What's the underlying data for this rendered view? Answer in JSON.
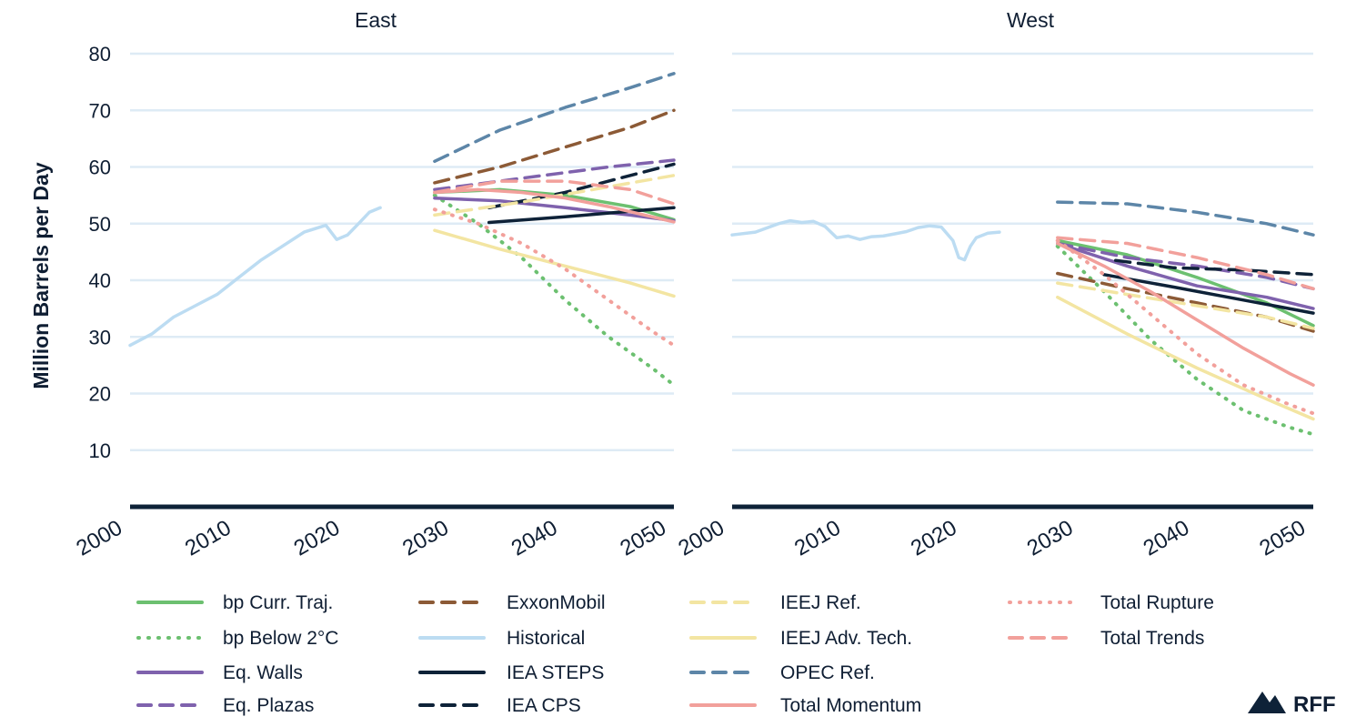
{
  "chart_data": {
    "type": "line",
    "ylabel": "Million Barrels per Day",
    "ylim": [
      0,
      80
    ],
    "yticks": [
      10,
      20,
      30,
      40,
      50,
      60,
      70,
      80
    ],
    "xlim": [
      2000,
      2050
    ],
    "xticks": [
      2000,
      2010,
      2020,
      2030,
      2040,
      2050
    ],
    "grid": true,
    "legend_position": "bottom",
    "brand": "RFF",
    "series_styles": [
      {
        "name": "bp Curr. Traj.",
        "color": "#6cc070",
        "dash": "solid"
      },
      {
        "name": "bp Below 2°C",
        "color": "#6cc070",
        "dash": "dot"
      },
      {
        "name": "Eq. Walls",
        "color": "#7f62ad",
        "dash": "solid"
      },
      {
        "name": "Eq. Plazas",
        "color": "#7f62ad",
        "dash": "dash"
      },
      {
        "name": "ExxonMobil",
        "color": "#8c5a36",
        "dash": "dash"
      },
      {
        "name": "Historical",
        "color": "#bcdcf2",
        "dash": "solid"
      },
      {
        "name": "IEA STEPS",
        "color": "#0e2238",
        "dash": "solid"
      },
      {
        "name": "IEA CPS",
        "color": "#0e2238",
        "dash": "dash"
      },
      {
        "name": "IEEJ Ref.",
        "color": "#f3e5a2",
        "dash": "dash"
      },
      {
        "name": "IEEJ Adv. Tech.",
        "color": "#f3e5a2",
        "dash": "solid"
      },
      {
        "name": "OPEC Ref.",
        "color": "#5d86a8",
        "dash": "dash"
      },
      {
        "name": "Total Momentum",
        "color": "#f2a09b",
        "dash": "solid"
      },
      {
        "name": "Total Rupture",
        "color": "#f2a09b",
        "dash": "dot"
      },
      {
        "name": "Total Trends",
        "color": "#f2a09b",
        "dash": "dash"
      }
    ],
    "panels": [
      {
        "title": "East",
        "series": [
          {
            "name": "Historical",
            "x": [
              2000,
              2002,
              2004,
              2006,
              2008,
              2010,
              2012,
              2014,
              2016,
              2018,
              2019,
              2020,
              2021,
              2022,
              2023
            ],
            "y": [
              28.5,
              30.5,
              33.5,
              35.5,
              37.5,
              40.5,
              43.5,
              46,
              48.5,
              49.7,
              47.2,
              48,
              50,
              52,
              52.8
            ]
          },
          {
            "name": "bp Curr. Traj.",
            "x": [
              2028,
              2034,
              2040,
              2046,
              2050
            ],
            "y": [
              55.5,
              56,
              55,
              53,
              50.7
            ]
          },
          {
            "name": "bp Below 2°C",
            "x": [
              2028,
              2032,
              2036,
              2040,
              2044,
              2048,
              2050
            ],
            "y": [
              55,
              50,
              44,
              36.5,
              30,
              24.5,
              21.5
            ]
          },
          {
            "name": "Eq. Walls",
            "x": [
              2028,
              2034,
              2040,
              2046,
              2050
            ],
            "y": [
              54.5,
              54,
              52.8,
              51.5,
              50.5
            ]
          },
          {
            "name": "Eq. Plazas",
            "x": [
              2028,
              2036,
              2044,
              2050
            ],
            "y": [
              56,
              58,
              60,
              61.2
            ]
          },
          {
            "name": "ExxonMobil",
            "x": [
              2028,
              2034,
              2040,
              2046,
              2050
            ],
            "y": [
              57.2,
              60,
              63.5,
              67,
              70
            ]
          },
          {
            "name": "IEA STEPS",
            "x": [
              2033,
              2040,
              2046,
              2050
            ],
            "y": [
              50.2,
              51.2,
              52.2,
              52.8
            ]
          },
          {
            "name": "IEA CPS",
            "x": [
              2033,
              2040,
              2046,
              2050
            ],
            "y": [
              52.8,
              55.5,
              58.5,
              60.5
            ]
          },
          {
            "name": "IEEJ Ref.",
            "x": [
              2028,
              2036,
              2044,
              2050
            ],
            "y": [
              51.5,
              53.8,
              56.5,
              58.5
            ]
          },
          {
            "name": "IEEJ Adv. Tech.",
            "x": [
              2028,
              2034,
              2040,
              2046,
              2050
            ],
            "y": [
              48.8,
              45.5,
              42.5,
              39.5,
              37.2
            ]
          },
          {
            "name": "OPEC Ref.",
            "x": [
              2028,
              2034,
              2040,
              2046,
              2050
            ],
            "y": [
              61,
              66.5,
              70.5,
              74,
              76.5
            ]
          },
          {
            "name": "Total Momentum",
            "x": [
              2028,
              2032,
              2036,
              2040,
              2044,
              2048,
              2050
            ],
            "y": [
              55.5,
              56,
              55.5,
              54.5,
              53,
              51.2,
              50.3
            ]
          },
          {
            "name": "Total Rupture",
            "x": [
              2028,
              2032,
              2036,
              2040,
              2044,
              2048,
              2050
            ],
            "y": [
              52.5,
              50,
              46.5,
              42,
              36.5,
              31,
              28.5
            ]
          },
          {
            "name": "Total Trends",
            "x": [
              2028,
              2034,
              2040,
              2046,
              2050
            ],
            "y": [
              55.5,
              57.5,
              57.5,
              56,
              53.5
            ]
          }
        ]
      },
      {
        "title": "West",
        "series": [
          {
            "name": "Historical",
            "x": [
              2000,
              2002,
              2004,
              2005,
              2006,
              2007,
              2008,
              2009,
              2010,
              2011,
              2012,
              2013,
              2014,
              2015,
              2016,
              2017,
              2018,
              2019,
              2019.5,
              2020,
              2020.5,
              2021,
              2022,
              2023
            ],
            "y": [
              48,
              48.5,
              50,
              50.5,
              50.2,
              50.4,
              49.5,
              47.5,
              47.8,
              47.2,
              47.7,
              47.8,
              48.2,
              48.6,
              49.3,
              49.6,
              49.4,
              47,
              44,
              43.6,
              46,
              47.5,
              48.3,
              48.5
            ]
          },
          {
            "name": "bp Curr. Traj.",
            "x": [
              2028,
              2034,
              2040,
              2046,
              2050
            ],
            "y": [
              47,
              44.5,
              40.5,
              36,
              32
            ]
          },
          {
            "name": "bp Below 2°C",
            "x": [
              2028,
              2032,
              2036,
              2040,
              2044,
              2048,
              2050
            ],
            "y": [
              46,
              38,
              29.5,
              22.5,
              17,
              14,
              12.8
            ]
          },
          {
            "name": "Eq. Walls",
            "x": [
              2028,
              2034,
              2040,
              2046,
              2050
            ],
            "y": [
              46.5,
              42.5,
              39,
              37,
              35
            ]
          },
          {
            "name": "Eq. Plazas",
            "x": [
              2028,
              2034,
              2040,
              2046,
              2050
            ],
            "y": [
              46.5,
              44,
              42.5,
              40.5,
              38.5
            ]
          },
          {
            "name": "ExxonMobil",
            "x": [
              2028,
              2034,
              2040,
              2046,
              2050
            ],
            "y": [
              41.2,
              38.5,
              36,
              33.5,
              31
            ]
          },
          {
            "name": "IEA STEPS",
            "x": [
              2032,
              2038,
              2044,
              2050
            ],
            "y": [
              41,
              38.8,
              36.5,
              34.2
            ]
          },
          {
            "name": "IEA CPS",
            "x": [
              2033,
              2038,
              2044,
              2050
            ],
            "y": [
              43.5,
              42.2,
              41.8,
              41
            ]
          },
          {
            "name": "IEEJ Ref.",
            "x": [
              2028,
              2034,
              2040,
              2046,
              2050
            ],
            "y": [
              39.5,
              37.5,
              35.5,
              33.5,
              31.5
            ]
          },
          {
            "name": "IEEJ Adv. Tech.",
            "x": [
              2028,
              2034,
              2040,
              2046,
              2050
            ],
            "y": [
              37,
              30.5,
              24.5,
              19,
              15.5
            ]
          },
          {
            "name": "OPEC Ref.",
            "x": [
              2028,
              2034,
              2040,
              2046,
              2050
            ],
            "y": [
              53.8,
              53.5,
              52,
              50,
              48
            ]
          },
          {
            "name": "Total Momentum",
            "x": [
              2028,
              2032,
              2036,
              2040,
              2044,
              2048,
              2050
            ],
            "y": [
              46.5,
              42.5,
              38,
              33,
              28,
              23.5,
              21.5
            ]
          },
          {
            "name": "Total Rupture",
            "x": [
              2028,
              2032,
              2036,
              2040,
              2044,
              2048,
              2050
            ],
            "y": [
              47,
              41,
              34,
              27,
              21.5,
              18,
              16.5
            ]
          },
          {
            "name": "Total Trends",
            "x": [
              2028,
              2034,
              2040,
              2046,
              2050
            ],
            "y": [
              47.5,
              46.5,
              44,
              41,
              38.5
            ]
          }
        ]
      }
    ]
  }
}
